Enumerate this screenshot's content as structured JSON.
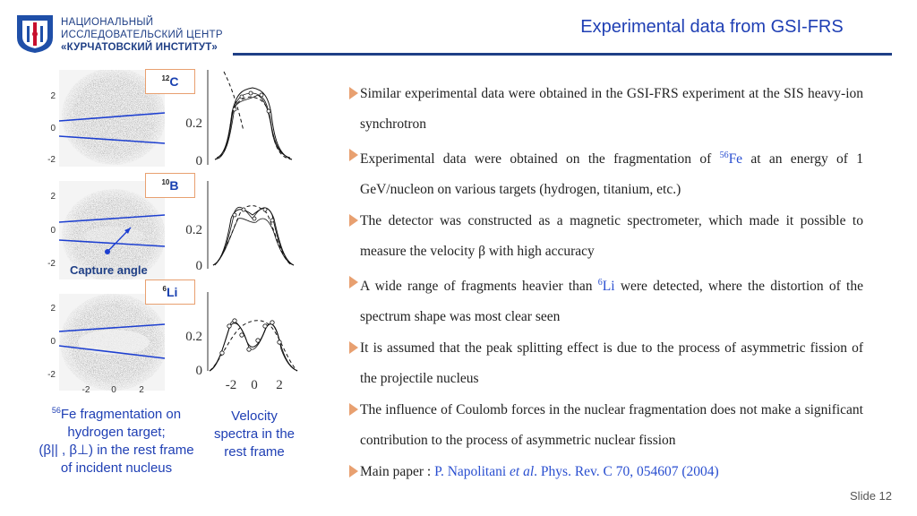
{
  "header": {
    "org_line1": "НАЦИОНАЛЬНЫЙ",
    "org_line2": "ИССЛЕДОВАТЕЛЬСКИЙ ЦЕНТР",
    "org_line3": "«КУРЧАТОВСКИЙ ИНСТИТУТ»",
    "title": "Experimental data  from GSI-FRS"
  },
  "figure": {
    "labels": [
      {
        "mass": "12",
        "symbol": "C"
      },
      {
        "mass": "10",
        "symbol": "B"
      },
      {
        "mass": "6",
        "symbol": "Li"
      }
    ],
    "capture_angle": "Capture angle",
    "y_ticks": [
      "2",
      "0",
      "-2"
    ],
    "x_ticks": [
      "-2",
      "0",
      "2"
    ],
    "spectrum_ticks": [
      "0.2",
      "0"
    ],
    "caption_left": {
      "sup": "56",
      "text1": "Fe fragmentation on",
      "text2": "hydrogen target;",
      "text3": "(β|| , β⊥) in the rest frame",
      "text4": "of incident nucleus"
    },
    "caption_middle": {
      "line1": "Velocity",
      "line2": "spectra in the",
      "line3": "rest frame"
    }
  },
  "bullets": {
    "b1": "Similar experimental data were obtained in the GSI-FRS experiment at the SIS heavy-ion synchrotron",
    "b2_pre": "Experimental data were obtained on the fragmentation of ",
    "b2_sup": "56",
    "b2_el": "Fe",
    "b2_post": " at an energy of 1 GeV/nucleon on various targets (hydrogen, titanium, etc.)",
    "b3": "The detector was constructed as a magnetic spectrometer, which made it possible to measure the velocity β with high accuracy",
    "b4_pre": "A wide range of fragments heavier than ",
    "b4_sup": "6",
    "b4_el": "Li",
    "b4_post": " were detected, where the distortion of the spectrum shape was most clear seen",
    "b5": "It is assumed that the peak splitting effect is due to the process of asymmetric fission of the projectile nucleus",
    "b6": "The influence of Coulomb forces in the nuclear fragmentation does not make a significant contribution to the process of asymmetric nuclear fission",
    "b7_pre": "Main paper : ",
    "b7_authors": "P. Napolitani ",
    "b7_etal": "et al",
    "b7_ref": ". Phys. Rev. C 70, 054607 (2004)"
  },
  "footer": {
    "slide": "Slide 12"
  },
  "colors": {
    "accent": "#1f3fb4",
    "arrow": "#e8a070",
    "navy": "#1f3f86"
  }
}
